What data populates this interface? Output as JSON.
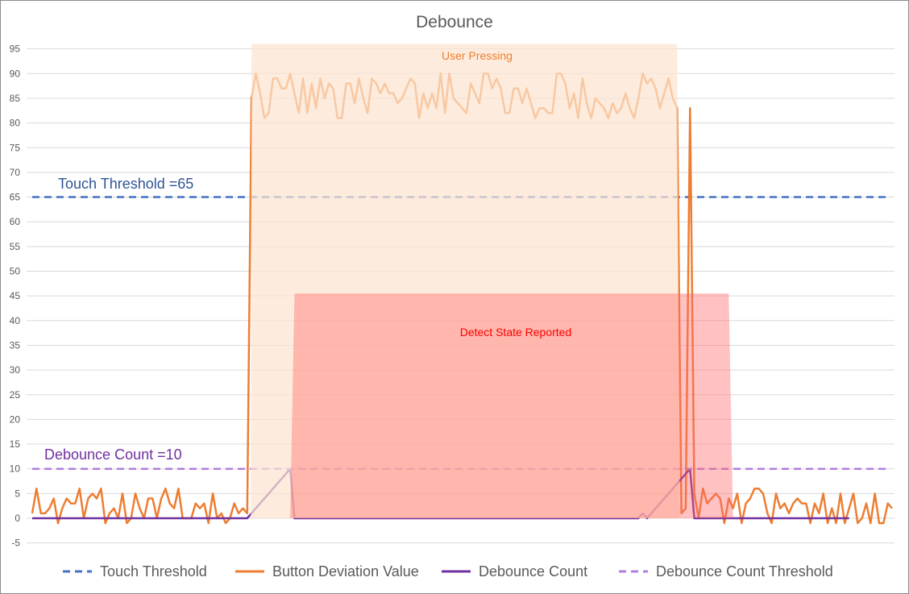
{
  "chart_data": {
    "type": "line",
    "title": "Debounce",
    "xlabel": "",
    "ylabel": "",
    "ylim": [
      -5,
      95
    ],
    "ytick_step": 5,
    "grid": true,
    "legend_placement": "bottom",
    "series": [
      {
        "name": "Touch Threshold",
        "kind": "constant",
        "value": 65,
        "style": "dashed",
        "color": "#4472c4"
      },
      {
        "name": "Button Deviation Value",
        "kind": "line",
        "color": "#ed7d31",
        "values": [
          1,
          6,
          1,
          1,
          2,
          4,
          -1,
          2,
          4,
          3,
          3,
          6,
          0,
          4,
          5,
          4,
          6,
          -1,
          1,
          2,
          0,
          5,
          -1,
          0,
          5,
          2,
          0,
          4,
          4,
          0,
          4,
          6,
          3,
          2,
          6,
          0,
          0,
          0,
          3,
          2,
          3,
          -1,
          5,
          0,
          1,
          -1,
          0,
          3,
          1,
          2,
          1,
          85,
          90,
          86,
          81,
          82,
          89,
          89,
          87,
          87,
          90,
          86,
          82,
          89,
          82,
          88,
          83,
          89,
          85,
          88,
          87,
          81,
          81,
          88,
          88,
          84,
          89,
          85,
          82,
          89,
          88,
          86,
          88,
          86,
          86,
          84,
          85,
          87,
          89,
          88,
          81,
          86,
          83,
          86,
          83,
          90,
          82,
          90,
          85,
          84,
          83,
          82,
          88,
          86,
          84,
          90,
          90,
          87,
          89,
          87,
          82,
          82,
          87,
          87,
          84,
          87,
          84,
          81,
          83,
          83,
          82,
          82,
          90,
          90,
          88,
          83,
          86,
          81,
          89,
          84,
          81,
          85,
          84,
          83,
          81,
          84,
          82,
          83,
          86,
          83,
          81,
          85,
          90,
          88,
          89,
          87,
          83,
          86,
          89,
          85,
          83,
          1,
          2,
          83,
          5,
          0,
          6,
          3,
          4,
          5,
          4,
          -1,
          4,
          2,
          5,
          -1,
          3,
          4,
          6,
          6,
          5,
          1,
          -1,
          5,
          2,
          3,
          1,
          3,
          4,
          3,
          3,
          -1,
          3,
          1,
          5,
          -1,
          2,
          -1,
          5,
          -1,
          2,
          5,
          -1,
          0,
          3,
          -1,
          5,
          -1,
          -1,
          3,
          2
        ]
      },
      {
        "name": "Debounce Count",
        "kind": "line",
        "color": "#7030a0",
        "values": [
          0,
          0,
          0,
          0,
          0,
          0,
          0,
          0,
          0,
          0,
          0,
          0,
          0,
          0,
          0,
          0,
          0,
          0,
          0,
          0,
          0,
          0,
          0,
          0,
          0,
          0,
          0,
          0,
          0,
          0,
          0,
          0,
          0,
          0,
          0,
          0,
          0,
          0,
          0,
          0,
          0,
          0,
          0,
          0,
          0,
          0,
          0,
          0,
          0,
          0,
          0,
          1,
          2,
          3,
          4,
          5,
          6,
          7,
          8,
          9,
          10,
          0,
          0,
          0,
          0,
          0,
          0,
          0,
          0,
          0,
          0,
          0,
          0,
          0,
          0,
          0,
          0,
          0,
          0,
          0,
          0,
          0,
          0,
          0,
          0,
          0,
          0,
          0,
          0,
          0,
          0,
          0,
          0,
          0,
          0,
          0,
          0,
          0,
          0,
          0,
          0,
          0,
          0,
          0,
          0,
          0,
          0,
          0,
          0,
          0,
          0,
          0,
          0,
          0,
          0,
          0,
          0,
          0,
          0,
          0,
          0,
          0,
          0,
          0,
          0,
          0,
          0,
          0,
          0,
          0,
          0,
          0,
          0,
          0,
          0,
          0,
          0,
          0,
          0,
          0,
          0,
          0,
          1,
          0,
          1,
          2,
          3,
          4,
          5,
          6,
          7,
          8,
          9,
          10,
          0,
          0,
          0,
          0,
          0,
          0,
          0,
          0,
          0,
          0,
          0,
          0,
          0,
          0,
          0,
          0,
          0,
          0,
          0,
          0,
          0,
          0,
          0,
          0,
          0,
          0,
          0,
          0,
          0,
          0,
          0,
          0,
          0,
          0,
          0,
          0,
          0
        ]
      },
      {
        "name": "Debounce Count Threshold",
        "kind": "constant",
        "value": 10,
        "style": "dashed",
        "color": "#b07fe0"
      }
    ],
    "shaded_regions": [
      {
        "label": "User Pressing",
        "value": 96,
        "start_index": 51,
        "end_index": 150,
        "fill": "#fce4d0",
        "label_color": "#ed7d31"
      },
      {
        "label": "Detect State Reported",
        "value": 45.5,
        "start_index": 61,
        "end_index": 162,
        "fill": "#ff6b6b",
        "label_color": "#ff0000"
      }
    ],
    "annotations": [
      {
        "text": "Touch Threshold =65",
        "color": "#2f5597"
      },
      {
        "text": "Debounce Count =10",
        "color": "#7030a0"
      }
    ]
  }
}
